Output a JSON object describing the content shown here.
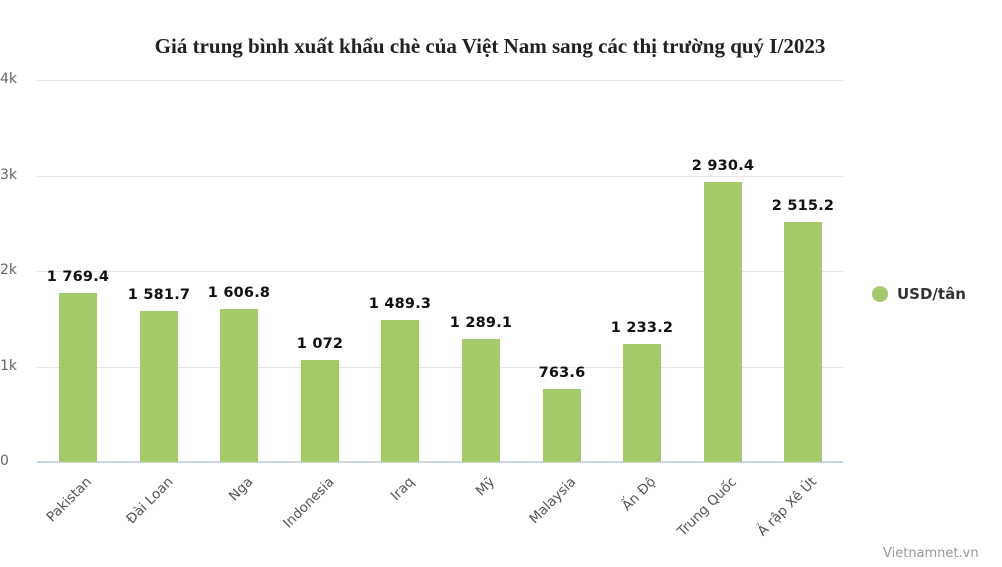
{
  "chart_data": {
    "type": "bar",
    "title": "Giá trung bình xuất khẩu chè của Việt Nam sang các thị trường quý I/2023",
    "xlabel": "",
    "ylabel": "",
    "ylim": [
      0,
      4000
    ],
    "yticks": [
      "0",
      "1k",
      "2k",
      "3k",
      "4k"
    ],
    "grid": true,
    "legend_position": "right",
    "categories": [
      "Pakistan",
      "Đài Loan",
      "Nga",
      "Indonesia",
      "Iraq",
      "Mỹ",
      "Malaysia",
      "Ấn Độ",
      "Trung Quốc",
      "Ả rập Xê Út"
    ],
    "series": [
      {
        "name": "USD/tân",
        "color": "#a6c96a",
        "values": [
          1769.4,
          1581.7,
          1606.8,
          1072,
          1489.3,
          1289.1,
          763.6,
          1233.2,
          2930.4,
          2515.2
        ],
        "labels": [
          "1 769.4",
          "1 581.7",
          "1 606.8",
          "1 072",
          "1 489.3",
          "1 289.1",
          "763.6",
          "1 233.2",
          "2 930.4",
          "2 515.2"
        ]
      }
    ]
  },
  "legend": {
    "label": "USD/tân"
  },
  "credit": "Vietnamnet.vn"
}
